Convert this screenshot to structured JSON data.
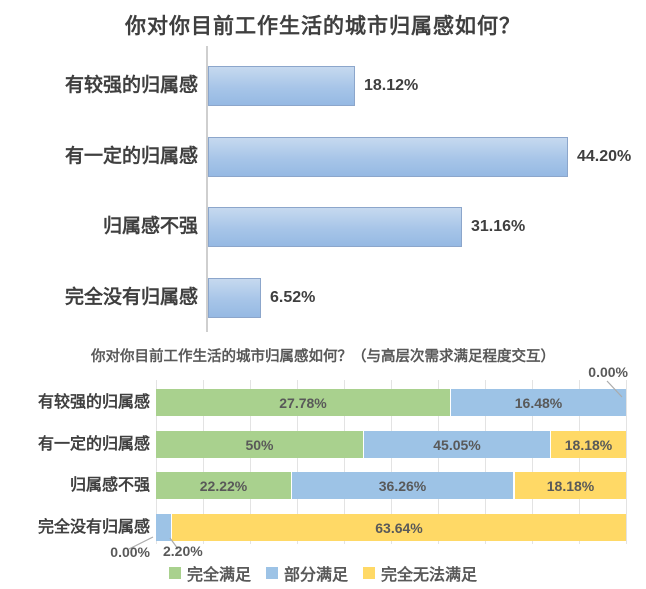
{
  "chart_data": [
    {
      "type": "bar",
      "orientation": "horizontal",
      "title": "你对你目前工作生活的城市归属感如何？",
      "categories": [
        "有较强的归属感",
        "有一定的归属感",
        "归属感不强",
        "完全没有归属感"
      ],
      "values": [
        18.12,
        44.2,
        31.16,
        6.52
      ],
      "value_labels": [
        "18.12%",
        "44.20%",
        "31.16%",
        "6.52%"
      ],
      "xlim": [
        0,
        52
      ],
      "grid": false,
      "legend_position": "none",
      "bar_color": "#A7C5E8",
      "bar_border_color": "#8CA6CB",
      "data_label_position": "outside-end"
    },
    {
      "type": "bar",
      "subtype": "100%-stacked",
      "orientation": "horizontal",
      "title": "你对你目前工作生活的城市归属感如何？（与高层次需求满足程度交互）",
      "categories": [
        "有较强的归属感",
        "有一定的归属感",
        "归属感不强",
        "完全没有归属感"
      ],
      "series": [
        {
          "name": "完全满足",
          "color": "#A9D18E",
          "values": [
            27.78,
            50,
            22.22,
            0
          ],
          "labels": [
            "27.78%",
            "50%",
            "22.22%",
            "0.00%"
          ]
        },
        {
          "name": "部分满足",
          "color": "#9DC3E6",
          "values": [
            16.48,
            45.05,
            36.26,
            2.2
          ],
          "labels": [
            "16.48%",
            "45.05%",
            "36.26%",
            "2.20%"
          ]
        },
        {
          "name": "完全无法满足",
          "color": "#FFD966",
          "values": [
            0,
            18.18,
            18.18,
            63.64
          ],
          "labels": [
            "0.00%",
            "18.18%",
            "18.18%",
            "63.64%"
          ]
        }
      ],
      "callouts": [
        {
          "text": "0.00%",
          "series": "完全无法满足",
          "category": "有较强的归属感",
          "position": "top-right"
        },
        {
          "text": "0.00%",
          "series": "完全满足",
          "category": "完全没有归属感",
          "position": "below-bar-left"
        },
        {
          "text": "2.20%",
          "series": "部分满足",
          "category": "完全没有归属感",
          "position": "below-bar"
        }
      ],
      "grid": true,
      "gridline_interval_percent": 10,
      "legend_position": "bottom"
    }
  ],
  "theme": {
    "background": "#FFFFFF",
    "title_color": "#3F3F3F",
    "label_color": "#595959",
    "gridline_color": "#E3E3E3",
    "axis_line_color": "#CFCFCF",
    "leader_line_color": "#ABABAB"
  }
}
